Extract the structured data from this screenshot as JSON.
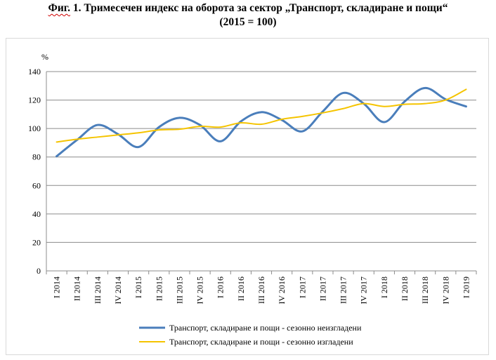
{
  "title": {
    "prefix": "Фиг.",
    "main": " 1. Тримесечен индекс на оборота за сектор „Транспорт, складиране и пощи“",
    "line2": "(2015 = 100)"
  },
  "chart_data": {
    "type": "line",
    "title": "Фиг. 1. Тримесечен индекс на оборота за сектор „Транспорт, складиране и пощи“ (2015 = 100)",
    "ylabel": "%",
    "xlabel": "",
    "ylim": [
      0,
      140
    ],
    "yticks": [
      0,
      20,
      40,
      60,
      80,
      100,
      120,
      140
    ],
    "grid": true,
    "legend_position": "bottom",
    "categories": [
      "I 2014",
      "II 2014",
      "III 2014",
      "IV 2014",
      "I 2015",
      "II 2015",
      "III 2015",
      "IV 2015",
      "I 2016",
      "II 2016",
      "III 2016",
      "IV 2016",
      "I 2017",
      "II 2017",
      "III 2017",
      "IV 2017",
      "I 2018",
      "II 2018",
      "III 2018",
      "IV 2018",
      "I 2019"
    ],
    "series": [
      {
        "name": "Транспорт, складиране и пощи - сезонно неизгладени",
        "color": "#4a7ebb",
        "values": [
          80.5,
          92.0,
          102.5,
          96.0,
          87.0,
          101.0,
          107.5,
          102.5,
          91.0,
          105.0,
          111.5,
          106.0,
          98.0,
          112.0,
          125.0,
          117.5,
          104.5,
          119.0,
          128.5,
          120.5,
          115.5
        ]
      },
      {
        "name": "Транспорт, складиране и пощи - сезонно изгладени",
        "color": "#f5c400",
        "values": [
          90.5,
          92.5,
          94.0,
          95.5,
          97.0,
          99.0,
          99.5,
          101.5,
          101.0,
          104.0,
          103.0,
          106.5,
          108.5,
          111.0,
          114.0,
          117.5,
          115.5,
          117.0,
          117.5,
          120.0,
          127.5
        ]
      }
    ]
  }
}
